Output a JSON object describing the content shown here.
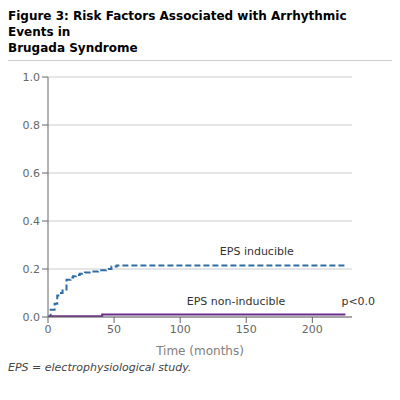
{
  "chart_data": {
    "type": "line",
    "title": "Figure 3: Risk Factors Associated with Arrhythmic Events in\nBrugada Syndrome",
    "xlabel": "Time (months)",
    "footnote": "EPS = electrophysiological study.",
    "xlim": [
      0,
      230
    ],
    "ylim": [
      0.0,
      1.0
    ],
    "xticks": [
      0,
      50,
      100,
      150,
      200
    ],
    "yticks": [
      {
        "value": 0,
        "label": "0.0"
      },
      0.2,
      0.4,
      0.6,
      0.8,
      {
        "value": 1,
        "label": "1.0"
      }
    ],
    "grid": "y",
    "series": [
      {
        "name": "EPS inducible",
        "color": "#2e6da4",
        "line_style": "dashed",
        "x": [
          0,
          2,
          5,
          7,
          9,
          11,
          14,
          17,
          19,
          21,
          24,
          28,
          33,
          38,
          44,
          48,
          52,
          70,
          100,
          130,
          160,
          190,
          210,
          225
        ],
        "values": [
          0.0,
          0.03,
          0.055,
          0.09,
          0.1,
          0.11,
          0.155,
          0.165,
          0.17,
          0.175,
          0.18,
          0.185,
          0.19,
          0.195,
          0.2,
          0.21,
          0.215,
          0.215,
          0.215,
          0.215,
          0.215,
          0.215,
          0.215,
          0.215
        ]
      },
      {
        "name": "EPS non-inducible",
        "color": "#6b2d8b",
        "line_style": "solid",
        "x": [
          0,
          1,
          40,
          41,
          100,
          150,
          200,
          225
        ],
        "values": [
          0.0,
          0.003,
          0.003,
          0.01,
          0.01,
          0.01,
          0.01,
          0.01
        ]
      }
    ],
    "annotations": [
      {
        "text": "EPS inducible",
        "x": 130,
        "y": 0.245
      },
      {
        "text": "EPS non-inducible",
        "x": 105,
        "y": 0.038
      },
      {
        "text": "p<0.0",
        "x": 222,
        "y": 0.038
      }
    ]
  }
}
